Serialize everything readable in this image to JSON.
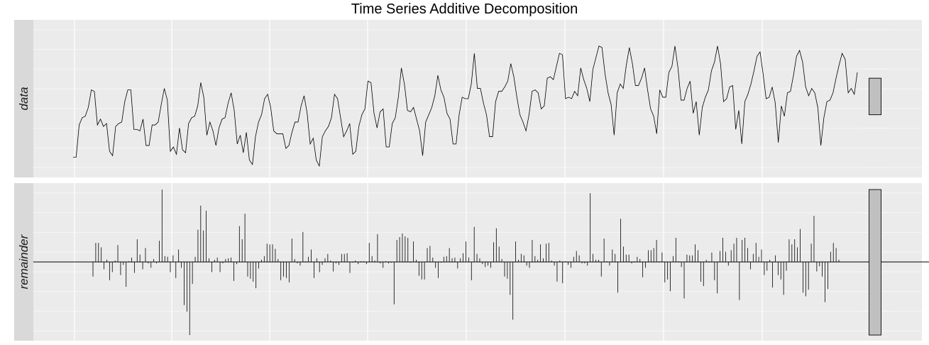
{
  "title": "Time Series Additive Decomposition",
  "chart_data": [
    {
      "type": "line",
      "panel": "data",
      "strip_label": "data",
      "grid": true,
      "axis_ticks_shown": false,
      "ylim": [
        0,
        1
      ],
      "range_bar": {
        "low": 0.39,
        "high": 0.64
      },
      "values": [
        0.1,
        0.1,
        0.32,
        0.37,
        0.38,
        0.44,
        0.56,
        0.55,
        0.32,
        0.36,
        0.31,
        0.33,
        0.14,
        0.11,
        0.31,
        0.33,
        0.34,
        0.48,
        0.56,
        0.56,
        0.29,
        0.29,
        0.28,
        0.36,
        0.18,
        0.18,
        0.32,
        0.32,
        0.34,
        0.46,
        0.57,
        0.49,
        0.14,
        0.17,
        0.12,
        0.3,
        0.15,
        0.13,
        0.33,
        0.37,
        0.38,
        0.45,
        0.61,
        0.51,
        0.25,
        0.34,
        0.28,
        0.18,
        0.3,
        0.36,
        0.37,
        0.47,
        0.54,
        0.42,
        0.19,
        0.25,
        0.13,
        0.27,
        0.08,
        0.05,
        0.24,
        0.34,
        0.39,
        0.5,
        0.53,
        0.44,
        0.28,
        0.26,
        0.26,
        0.26,
        0.16,
        0.18,
        0.27,
        0.34,
        0.34,
        0.45,
        0.52,
        0.4,
        0.19,
        0.23,
        0.08,
        0.04,
        0.24,
        0.28,
        0.31,
        0.37,
        0.53,
        0.5,
        0.37,
        0.24,
        0.28,
        0.33,
        0.12,
        0.14,
        0.31,
        0.39,
        0.43,
        0.62,
        0.61,
        0.4,
        0.3,
        0.41,
        0.43,
        0.17,
        0.17,
        0.33,
        0.37,
        0.51,
        0.71,
        0.6,
        0.42,
        0.41,
        0.44,
        0.36,
        0.28,
        0.11,
        0.34,
        0.39,
        0.44,
        0.52,
        0.66,
        0.56,
        0.51,
        0.4,
        0.36,
        0.19,
        0.19,
        0.39,
        0.51,
        0.5,
        0.5,
        0.6,
        0.81,
        0.57,
        0.57,
        0.47,
        0.39,
        0.24,
        0.24,
        0.48,
        0.55,
        0.55,
        0.58,
        0.62,
        0.74,
        0.65,
        0.51,
        0.39,
        0.34,
        0.28,
        0.39,
        0.55,
        0.56,
        0.54,
        0.43,
        0.45,
        0.64,
        0.65,
        0.63,
        0.72,
        0.81,
        0.8,
        0.5,
        0.51,
        0.5,
        0.55,
        0.52,
        0.71,
        0.63,
        0.57,
        0.48,
        0.7,
        0.78,
        0.86,
        0.85,
        0.67,
        0.54,
        0.46,
        0.25,
        0.54,
        0.6,
        0.57,
        0.73,
        0.85,
        0.74,
        0.59,
        0.59,
        0.64,
        0.71,
        0.56,
        0.43,
        0.38,
        0.26,
        0.56,
        0.51,
        0.51,
        0.68,
        0.72,
        0.86,
        0.71,
        0.49,
        0.49,
        0.57,
        0.62,
        0.4,
        0.48,
        0.25,
        0.44,
        0.51,
        0.56,
        0.69,
        0.75,
        0.86,
        0.74,
        0.48,
        0.5,
        0.58,
        0.59,
        0.29,
        0.42,
        0.19,
        0.48,
        0.53,
        0.6,
        0.69,
        0.79,
        0.82,
        0.67,
        0.5,
        0.51,
        0.58,
        0.47,
        0.2,
        0.45,
        0.38,
        0.54,
        0.55,
        0.66,
        0.79,
        0.83,
        0.75,
        0.58,
        0.52,
        0.57,
        0.54,
        0.44,
        0.18,
        0.37,
        0.48,
        0.49,
        0.54,
        0.64,
        0.73,
        0.81,
        0.77,
        0.54,
        0.57,
        0.53,
        0.68
      ]
    },
    {
      "type": "bar",
      "panel": "remainder",
      "strip_label": "remainder",
      "grid": true,
      "axis_ticks_shown": false,
      "ylim": [
        -1,
        1
      ],
      "baseline": 0,
      "range_bar": {
        "low": -1.0,
        "high": 0.99
      },
      "values": [
        -0.2,
        0.26,
        0.26,
        0.2,
        -0.1,
        0.03,
        -0.25,
        -0.14,
        0.02,
        0.23,
        -0.18,
        -0.04,
        -0.34,
        0.01,
        0.06,
        -0.15,
        0.31,
        0.1,
        -0.1,
        0.19,
        -0.02,
        -0.08,
        0.04,
        -0.02,
        0.29,
        0.99,
        0.08,
        0.07,
        -0.14,
        0.09,
        -0.22,
        0.17,
        -0.08,
        -0.59,
        -0.68,
        -1.0,
        -0.3,
        0.07,
        0.44,
        0.77,
        0.43,
        0.7,
        0.05,
        -0.14,
        0.03,
        0.06,
        -0.14,
        -0.02,
        0.04,
        0.05,
        0.06,
        -0.26,
        -0.03,
        0.49,
        0.31,
        0.66,
        -0.2,
        -0.23,
        -0.27,
        -0.36,
        -0.09,
        0.03,
        0.08,
        0.25,
        0.24,
        0.24,
        0.18,
        0.04,
        -0.25,
        -0.2,
        -0.22,
        -0.28,
        0.32,
        0.04,
        -0.02,
        -0.05,
        0.41,
        0.01,
        0.07,
        0.17,
        -0.22,
        0.05,
        -0.14,
        -0.04,
        0.05,
        0.11,
        0.02,
        -0.13,
        -0.02,
        -0.04,
        0.11,
        0.11,
        0.12,
        -0.15,
        -0.01,
        0.02,
        -0.03,
        0.01,
        0.01,
        -0.03,
        0.26,
        0.08,
        0.02,
        0.38,
        -0.02,
        -0.08,
        0.01,
        -0.02,
        -0.01,
        -0.58,
        0.3,
        0.34,
        0.39,
        0.35,
        0.33,
        -0.01,
        0.28,
        0.03,
        -0.19,
        -0.24,
        -0.24,
        0.19,
        0.22,
        0.06,
        -0.08,
        -0.22,
        -0.01,
        0.07,
        0.08,
        0.19,
        0.05,
        0.06,
        -0.09,
        0.05,
        0.12,
        0.28,
        0.06,
        -0.25,
        0.48,
        0.11,
        0.05,
        -0.03,
        -0.07,
        -0.05,
        -0.08,
        0.27,
        0.46,
        0.21,
        0.04,
        -0.2,
        -0.23,
        -0.45,
        -0.79,
        0.28,
        0.03,
        0.11,
        0.09,
        -0.05,
        -0.08,
        0.3,
        0.08,
        0.03,
        0.24,
        0.05,
        0.25,
        0.26,
        0.02,
        -0.05,
        -0.27,
        0.02,
        -0.29,
        0.01,
        -0.04,
        -0.08,
        0.07,
        0.15,
        0.09,
        -0.02,
        -0.02,
        -0.05,
        0.94,
        0.11,
        0.03,
        0.03,
        -0.2,
        0.32,
        0.01,
        -0.05,
        0.17,
        0.11,
        -0.42,
        0.59,
        0.21,
        0.1,
        0.1,
        -0.02,
        0.01,
        0.07,
        0.04,
        -0.21,
        -0.08,
        0.16,
        0.16,
        0.19,
        0.3,
        0.01,
        0.13,
        -0.28,
        -0.24,
        -0.4,
        0.08,
        0.33,
        0.01,
        -0.07,
        -0.5,
        0.1,
        0.09,
        0.09,
        0.24,
        0.16,
        -0.27,
        -0.33,
        0.03,
        0.01,
        0.13,
        -0.25,
        -0.43,
        0.15,
        0.33,
        0.14,
        -0.05,
        0.16,
        0.25,
        0.33,
        -0.52,
        0.3,
        0.33,
        0.19,
        -0.1,
        0.11,
        0.26,
        0.07,
        0.17,
        -0.18,
        -0.12,
        0.03,
        -0.35,
        0.09,
        -0.18,
        -0.24,
        -0.45,
        -0.12,
        0.31,
        0.24,
        0.31,
        0.2,
        0.45,
        -0.42,
        -0.47,
        -0.38,
        0.25,
        0.63,
        -0.13,
        -0.06,
        -0.2,
        -0.55,
        -0.37,
        0.14,
        0.26,
        0.19,
        0.03
      ]
    }
  ]
}
